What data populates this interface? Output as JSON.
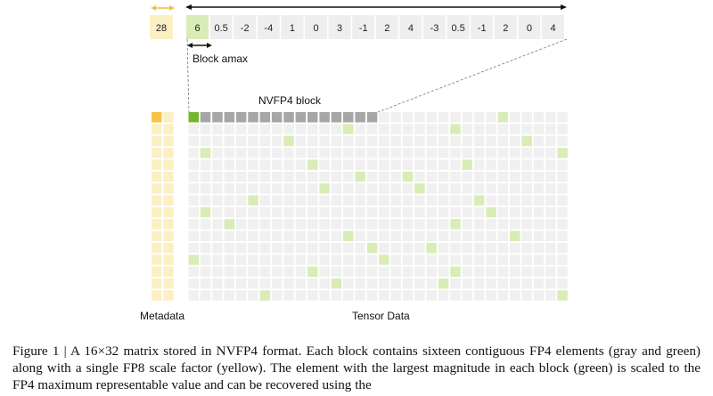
{
  "figure": {
    "scale_value": "28",
    "block_values": [
      "6",
      "0.5",
      "-2",
      "-4",
      "1",
      "0",
      "3",
      "-1",
      "2",
      "4",
      "-3",
      "0.5",
      "-1",
      "2",
      "0",
      "4"
    ],
    "block_amax_label": "Block amax",
    "nvfp4_block_label": "NVFP4 block",
    "metadata_label": "Metadata",
    "tensor_data_label": "Tensor Data",
    "matrix": {
      "rows": 16,
      "cols": 32,
      "block_size": 16
    },
    "colors": {
      "scale": "#fbf0c4",
      "scale_active": "#f6c443",
      "amax": "#d9ecb5",
      "amax_active": "#74b72e",
      "block_active": "#a6a6a6",
      "cell": "#f0f0f0",
      "header_cell": "#eeeeee",
      "scale_arrow": "#f0c040"
    }
  },
  "caption": {
    "text": "Figure 1 | A 16×32 matrix stored in NVFP4 format. Each block contains sixteen contiguous FP4 elements (gray and green) along with a single FP8 scale factor (yellow). The element with the largest magnitude in each block (green) is scaled to the FP4 maximum representable value and can be recovered using the"
  }
}
